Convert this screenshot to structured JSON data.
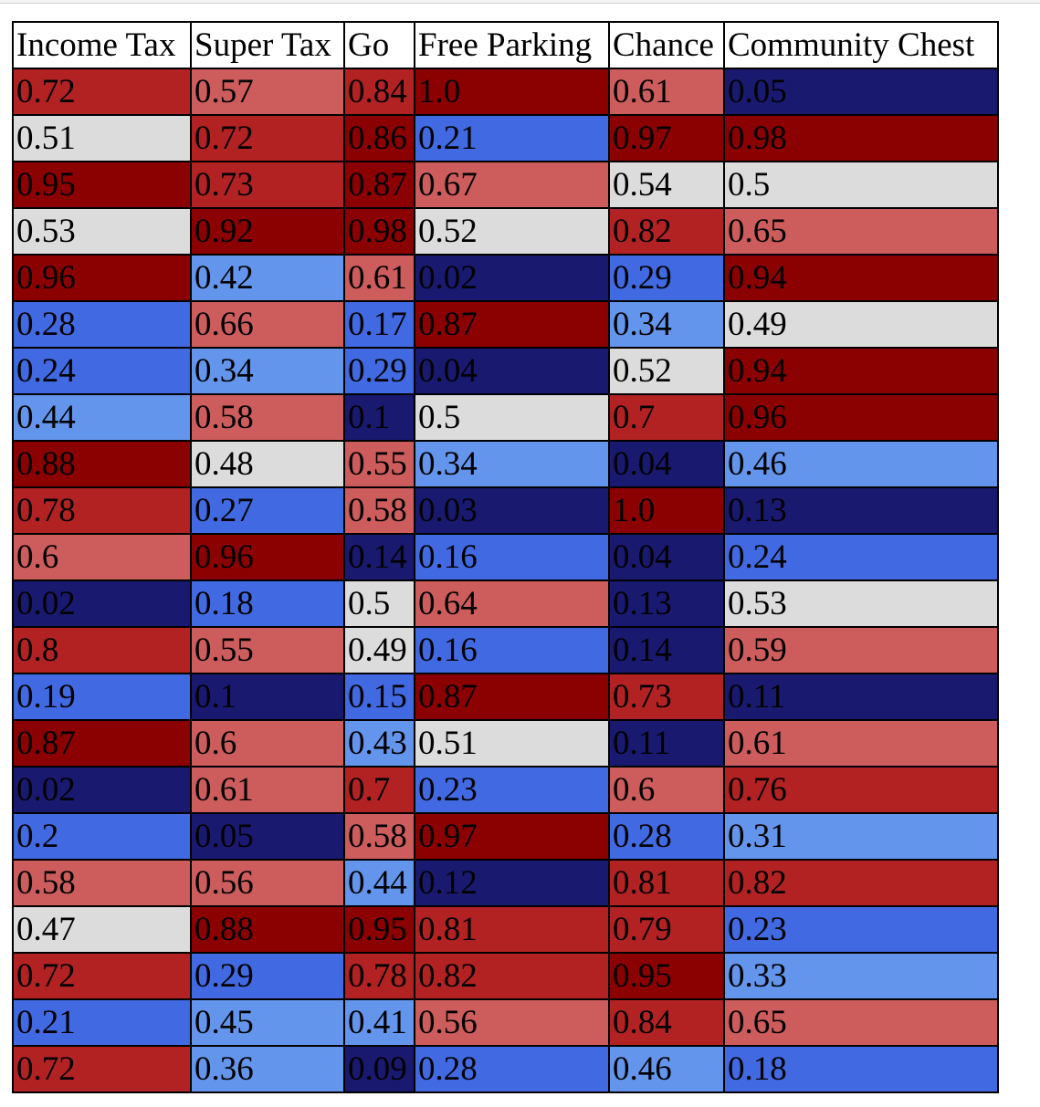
{
  "table": {
    "headers": [
      "Income Tax",
      "Super Tax",
      "Go",
      "Free Parking",
      "Chance",
      "Community Chest"
    ],
    "rows": [
      [
        "0.72",
        "0.57",
        "0.84",
        "1.0",
        "0.61",
        "0.05"
      ],
      [
        "0.51",
        "0.72",
        "0.86",
        "0.21",
        "0.97",
        "0.98"
      ],
      [
        "0.95",
        "0.73",
        "0.87",
        "0.67",
        "0.54",
        "0.5"
      ],
      [
        "0.53",
        "0.92",
        "0.98",
        "0.52",
        "0.82",
        "0.65"
      ],
      [
        "0.96",
        "0.42",
        "0.61",
        "0.02",
        "0.29",
        "0.94"
      ],
      [
        "0.28",
        "0.66",
        "0.17",
        "0.87",
        "0.34",
        "0.49"
      ],
      [
        "0.24",
        "0.34",
        "0.29",
        "0.04",
        "0.52",
        "0.94"
      ],
      [
        "0.44",
        "0.58",
        "0.1",
        "0.5",
        "0.7",
        "0.96"
      ],
      [
        "0.88",
        "0.48",
        "0.55",
        "0.34",
        "0.04",
        "0.46"
      ],
      [
        "0.78",
        "0.27",
        "0.58",
        "0.03",
        "1.0",
        "0.13"
      ],
      [
        "0.6",
        "0.96",
        "0.14",
        "0.16",
        "0.04",
        "0.24"
      ],
      [
        "0.02",
        "0.18",
        "0.5",
        "0.64",
        "0.13",
        "0.53"
      ],
      [
        "0.8",
        "0.55",
        "0.49",
        "0.16",
        "0.14",
        "0.59"
      ],
      [
        "0.19",
        "0.1",
        "0.15",
        "0.87",
        "0.73",
        "0.11"
      ],
      [
        "0.87",
        "0.6",
        "0.43",
        "0.51",
        "0.11",
        "0.61"
      ],
      [
        "0.02",
        "0.61",
        "0.7",
        "0.23",
        "0.6",
        "0.76"
      ],
      [
        "0.2",
        "0.05",
        "0.58",
        "0.97",
        "0.28",
        "0.31"
      ],
      [
        "0.58",
        "0.56",
        "0.44",
        "0.12",
        "0.81",
        "0.82"
      ],
      [
        "0.47",
        "0.88",
        "0.95",
        "0.81",
        "0.79",
        "0.23"
      ],
      [
        "0.72",
        "0.29",
        "0.78",
        "0.82",
        "0.95",
        "0.33"
      ],
      [
        "0.21",
        "0.45",
        "0.41",
        "0.56",
        "0.84",
        "0.65"
      ],
      [
        "0.72",
        "0.36",
        "0.09",
        "0.28",
        "0.46",
        "0.18"
      ]
    ]
  },
  "colors": {
    "dark_blue": "#191970",
    "royal_blue": "#4169E1",
    "light_blue": "#6495ED",
    "neutral_gray": "#DCDCDC",
    "light_red": "#CD5C5C",
    "red": "#B22222",
    "dark_red": "#8B0000"
  }
}
